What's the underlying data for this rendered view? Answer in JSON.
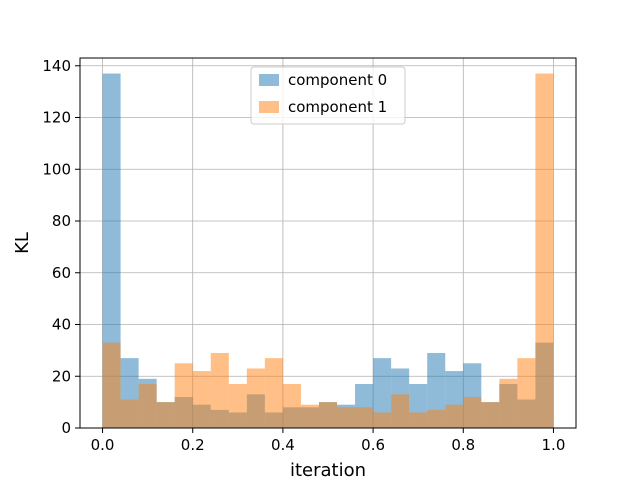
{
  "chart_data": {
    "type": "histogram",
    "xlabel": "iteration",
    "ylabel": "KL",
    "xlim": [
      -0.05,
      1.05
    ],
    "ylim": [
      0,
      143
    ],
    "xticks": [
      "0.0",
      "0.2",
      "0.4",
      "0.6",
      "0.8",
      "1.0"
    ],
    "yticks": [
      "0",
      "20",
      "40",
      "60",
      "80",
      "100",
      "120",
      "140"
    ],
    "grid": true,
    "legend_position": "upper center",
    "bin_start": 0.0,
    "bin_end": 1.0,
    "bins": 25,
    "series": [
      {
        "name": "component 0",
        "color": "#1f77b4",
        "values": [
          137,
          27,
          19,
          10,
          12,
          9,
          7,
          6,
          13,
          6,
          8,
          8,
          10,
          9,
          17,
          27,
          23,
          17,
          29,
          22,
          25,
          10,
          17,
          11,
          33
        ]
      },
      {
        "name": "component 1",
        "color": "#ff7f0e",
        "values": [
          33,
          11,
          17,
          10,
          25,
          22,
          29,
          17,
          23,
          27,
          17,
          9,
          10,
          8,
          8,
          6,
          13,
          6,
          7,
          9,
          12,
          10,
          19,
          27,
          137
        ]
      }
    ]
  }
}
